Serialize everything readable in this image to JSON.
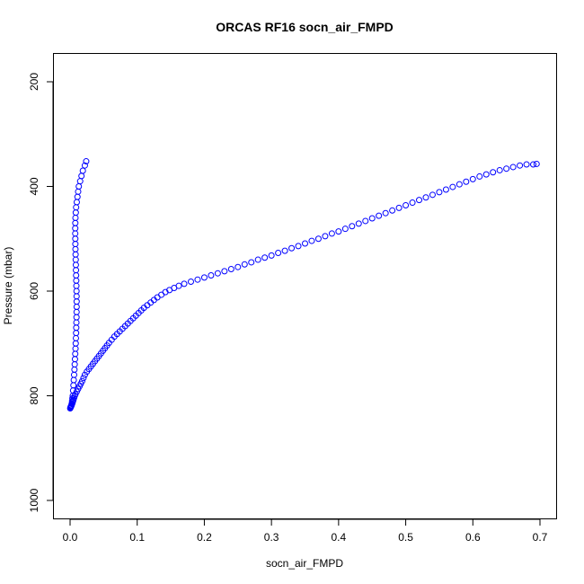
{
  "chart_data": {
    "type": "scatter",
    "title": "ORCAS RF16 socn_air_FMPD",
    "xlabel": "socn_air_FMPD",
    "ylabel": "Pressure (mbar)",
    "xlim": [
      0,
      0.7
    ],
    "ylim": [
      1000,
      200
    ],
    "y_reversed": true,
    "x_ticks": [
      "0.0",
      "0.1",
      "0.2",
      "0.3",
      "0.4",
      "0.5",
      "0.6",
      "0.7"
    ],
    "y_ticks": [
      "200",
      "400",
      "600",
      "800",
      "1000"
    ],
    "grid": false,
    "marker": "open-circle",
    "color": "#0000ff",
    "series": [
      {
        "values": [
          [
            0.024,
            352
          ],
          [
            0.022,
            360
          ],
          [
            0.019,
            370
          ],
          [
            0.017,
            380
          ],
          [
            0.015,
            390
          ],
          [
            0.013,
            400
          ],
          [
            0.012,
            410
          ],
          [
            0.011,
            420
          ],
          [
            0.01,
            430
          ],
          [
            0.009,
            440
          ],
          [
            0.0085,
            450
          ],
          [
            0.008,
            460
          ],
          [
            0.0078,
            470
          ],
          [
            0.0077,
            480
          ],
          [
            0.0077,
            490
          ],
          [
            0.0078,
            500
          ],
          [
            0.0079,
            510
          ],
          [
            0.008,
            520
          ],
          [
            0.0082,
            530
          ],
          [
            0.0084,
            540
          ],
          [
            0.0086,
            550
          ],
          [
            0.0088,
            560
          ],
          [
            0.009,
            570
          ],
          [
            0.0092,
            580
          ],
          [
            0.0094,
            590
          ],
          [
            0.0096,
            600
          ],
          [
            0.0097,
            610
          ],
          [
            0.0098,
            620
          ],
          [
            0.0098,
            630
          ],
          [
            0.0097,
            640
          ],
          [
            0.0096,
            650
          ],
          [
            0.0094,
            660
          ],
          [
            0.0092,
            670
          ],
          [
            0.009,
            680
          ],
          [
            0.0087,
            690
          ],
          [
            0.0084,
            700
          ],
          [
            0.0081,
            710
          ],
          [
            0.0077,
            720
          ],
          [
            0.0073,
            730
          ],
          [
            0.0069,
            740
          ],
          [
            0.0065,
            750
          ],
          [
            0.006,
            760
          ],
          [
            0.0055,
            770
          ],
          [
            0.005,
            780
          ],
          [
            0.0045,
            790
          ],
          [
            0.004,
            800
          ],
          [
            0.0035,
            805
          ],
          [
            0.003,
            810
          ],
          [
            0.0025,
            815
          ],
          [
            0.002,
            818
          ],
          [
            0.0015,
            820
          ],
          [
            0.001,
            822
          ],
          [
            0.0005,
            823
          ],
          [
            0.0002,
            824
          ],
          [
            0.001,
            821
          ],
          [
            0.002,
            819
          ],
          [
            0.003,
            816
          ],
          [
            0.004,
            812
          ],
          [
            0.005,
            808
          ],
          [
            0.006,
            804
          ],
          [
            0.007,
            800
          ],
          [
            0.008,
            797
          ],
          [
            0.01,
            792
          ],
          [
            0.012,
            787
          ],
          [
            0.014,
            782
          ],
          [
            0.016,
            777
          ],
          [
            0.018,
            772
          ],
          [
            0.02,
            766
          ],
          [
            0.022,
            760
          ],
          [
            0.025,
            754
          ],
          [
            0.028,
            749
          ],
          [
            0.031,
            744
          ],
          [
            0.034,
            739
          ],
          [
            0.037,
            734
          ],
          [
            0.04,
            729
          ],
          [
            0.043,
            724
          ],
          [
            0.046,
            719
          ],
          [
            0.049,
            714
          ],
          [
            0.052,
            709
          ],
          [
            0.055,
            704
          ],
          [
            0.058,
            699
          ],
          [
            0.062,
            693
          ],
          [
            0.066,
            687
          ],
          [
            0.07,
            682
          ],
          [
            0.074,
            677
          ],
          [
            0.078,
            672
          ],
          [
            0.082,
            667
          ],
          [
            0.086,
            662
          ],
          [
            0.09,
            657
          ],
          [
            0.094,
            652
          ],
          [
            0.098,
            647
          ],
          [
            0.102,
            642
          ],
          [
            0.106,
            637
          ],
          [
            0.11,
            632
          ],
          [
            0.115,
            627
          ],
          [
            0.12,
            622
          ],
          [
            0.125,
            617
          ],
          [
            0.13,
            612
          ],
          [
            0.136,
            607
          ],
          [
            0.142,
            602
          ],
          [
            0.148,
            598
          ],
          [
            0.155,
            594
          ],
          [
            0.162,
            590
          ],
          [
            0.17,
            586
          ],
          [
            0.18,
            582
          ],
          [
            0.19,
            578
          ],
          [
            0.2,
            574
          ],
          [
            0.21,
            570
          ],
          [
            0.22,
            566
          ],
          [
            0.23,
            562
          ],
          [
            0.24,
            558
          ],
          [
            0.25,
            554
          ],
          [
            0.26,
            549
          ],
          [
            0.27,
            545
          ],
          [
            0.28,
            540
          ],
          [
            0.29,
            536
          ],
          [
            0.3,
            532
          ],
          [
            0.31,
            527
          ],
          [
            0.32,
            523
          ],
          [
            0.33,
            518
          ],
          [
            0.34,
            514
          ],
          [
            0.35,
            509
          ],
          [
            0.36,
            504
          ],
          [
            0.37,
            500
          ],
          [
            0.38,
            495
          ],
          [
            0.39,
            490
          ],
          [
            0.4,
            486
          ],
          [
            0.41,
            481
          ],
          [
            0.42,
            476
          ],
          [
            0.43,
            471
          ],
          [
            0.44,
            466
          ],
          [
            0.45,
            461
          ],
          [
            0.46,
            456
          ],
          [
            0.47,
            451
          ],
          [
            0.48,
            446
          ],
          [
            0.49,
            441
          ],
          [
            0.5,
            436
          ],
          [
            0.51,
            431
          ],
          [
            0.52,
            426
          ],
          [
            0.53,
            421
          ],
          [
            0.54,
            416
          ],
          [
            0.55,
            411
          ],
          [
            0.56,
            406
          ],
          [
            0.57,
            401
          ],
          [
            0.58,
            396
          ],
          [
            0.59,
            391
          ],
          [
            0.6,
            386
          ],
          [
            0.61,
            381
          ],
          [
            0.62,
            377
          ],
          [
            0.63,
            373
          ],
          [
            0.64,
            369
          ],
          [
            0.65,
            366
          ],
          [
            0.66,
            363
          ],
          [
            0.67,
            360
          ],
          [
            0.68,
            358
          ],
          [
            0.69,
            358
          ],
          [
            0.695,
            357
          ]
        ]
      }
    ]
  }
}
